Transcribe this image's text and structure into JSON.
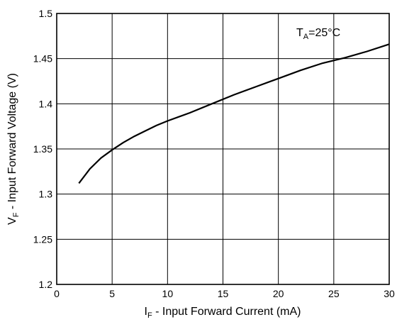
{
  "chart_data": {
    "type": "line",
    "title": "",
    "xlabel": {
      "main": "I",
      "sub": "F",
      "rest": " - Input Forward Current (mA)"
    },
    "ylabel": {
      "main": "V",
      "sub": "F",
      "rest": " - Input Forward Voltage (V)"
    },
    "xlim": [
      0,
      30
    ],
    "ylim": [
      1.2,
      1.5
    ],
    "xticks": [
      "0",
      "5",
      "10",
      "15",
      "20",
      "25",
      "30"
    ],
    "yticks": [
      "1.2",
      "1.25",
      "1.3",
      "1.35",
      "1.4",
      "1.45",
      "1.5"
    ],
    "grid": true,
    "annotation": {
      "main": "T",
      "sub": "A",
      "rest": "=25°C"
    },
    "series": [
      {
        "x": [
          2,
          3,
          4,
          5,
          6,
          7,
          8,
          9,
          10,
          12,
          14,
          16,
          18,
          20,
          22,
          24,
          26,
          28,
          30
        ],
        "y": [
          1.312,
          1.328,
          1.34,
          1.349,
          1.357,
          1.364,
          1.37,
          1.376,
          1.381,
          1.39,
          1.4,
          1.41,
          1.419,
          1.428,
          1.437,
          1.445,
          1.451,
          1.458,
          1.466
        ]
      }
    ]
  }
}
